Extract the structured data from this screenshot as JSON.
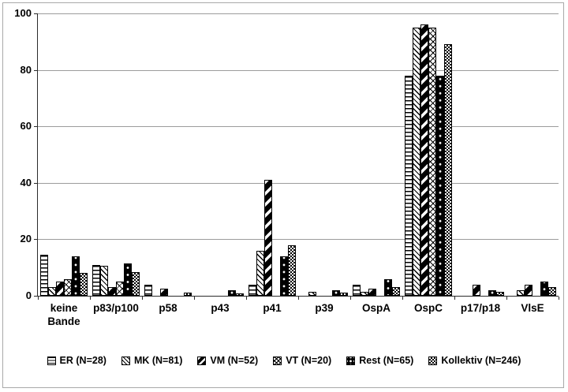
{
  "chart_data": {
    "type": "bar",
    "title": "",
    "xlabel": "",
    "ylabel": "",
    "categories": [
      "keine Bande",
      "p83/p100",
      "p58",
      "p43",
      "p41",
      "p39",
      "OspA",
      "OspC",
      "p17/p18",
      "VlsE"
    ],
    "category_labels": [
      "keine\nBande",
      "p83/p100",
      "p58",
      "p43",
      "p41",
      "p39",
      "OspA",
      "OspC",
      "p17/p18",
      "VlsE"
    ],
    "series": [
      {
        "name": "ER (N=28)",
        "key": "er",
        "pattern": "horizontal-stripes",
        "values": [
          14.5,
          11,
          4,
          0,
          4,
          0,
          4,
          78,
          0,
          0
        ]
      },
      {
        "name": "MK (N=81)",
        "key": "mk",
        "pattern": "thin-diagonal-stripes",
        "values": [
          3,
          10.5,
          0,
          0,
          16,
          1.5,
          1.5,
          95,
          0,
          2
        ]
      },
      {
        "name": "VM (N=52)",
        "key": "vm",
        "pattern": "black-thick-white-diagonal",
        "values": [
          5,
          3,
          2.5,
          0,
          41,
          0,
          2.5,
          96,
          4,
          4
        ]
      },
      {
        "name": "VT (N=20)",
        "key": "vt",
        "pattern": "diamond-crosshatch",
        "values": [
          6,
          5,
          0,
          0,
          0,
          0,
          0,
          95,
          0,
          0
        ]
      },
      {
        "name": "Rest (N=65)",
        "key": "rest",
        "pattern": "black-white-dots",
        "values": [
          14,
          11.5,
          0,
          2,
          14,
          2,
          6,
          78,
          2,
          5
        ]
      },
      {
        "name": "Kollektiv (N=246)",
        "key": "kollektiv",
        "pattern": "fine-checkerboard",
        "values": [
          8,
          8.5,
          1,
          0.7,
          18,
          1,
          3,
          89,
          1.5,
          3
        ]
      }
    ],
    "ylim": [
      0,
      100
    ],
    "yticks": [
      0,
      20,
      40,
      60,
      80,
      100
    ],
    "grid": true,
    "legend_position": "bottom",
    "colors": {
      "foreground": "#000000",
      "background": "#ffffff",
      "gridline": "#9c9c9c",
      "axis": "#2b2b2b",
      "outer_border": "#a9a9a9"
    }
  }
}
